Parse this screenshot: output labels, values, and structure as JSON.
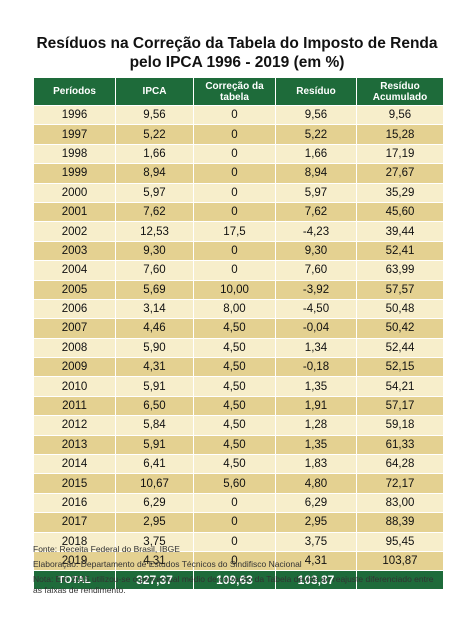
{
  "title_line1": "Resíduos na Correção da Tabela do Imposto de Renda",
  "title_line2": "pelo IPCA 1996 - 2019 (em %)",
  "chart_data": {
    "type": "table",
    "columns": [
      "Períodos",
      "IPCA",
      "Correção da tabela",
      "Resíduo",
      "Resíduo Acumulado"
    ],
    "rows": [
      [
        "1996",
        "9,56",
        "0",
        "9,56",
        "9,56"
      ],
      [
        "1997",
        "5,22",
        "0",
        "5,22",
        "15,28"
      ],
      [
        "1998",
        "1,66",
        "0",
        "1,66",
        "17,19"
      ],
      [
        "1999",
        "8,94",
        "0",
        "8,94",
        "27,67"
      ],
      [
        "2000",
        "5,97",
        "0",
        "5,97",
        "35,29"
      ],
      [
        "2001",
        "7,62",
        "0",
        "7,62",
        "45,60"
      ],
      [
        "2002",
        "12,53",
        "17,5",
        "-4,23",
        "39,44"
      ],
      [
        "2003",
        "9,30",
        "0",
        "9,30",
        "52,41"
      ],
      [
        "2004",
        "7,60",
        "0",
        "7,60",
        "63,99"
      ],
      [
        "2005",
        "5,69",
        "10,00",
        "-3,92",
        "57,57"
      ],
      [
        "2006",
        "3,14",
        "8,00",
        "-4,50",
        "50,48"
      ],
      [
        "2007",
        "4,46",
        "4,50",
        "-0,04",
        "50,42"
      ],
      [
        "2008",
        "5,90",
        "4,50",
        "1,34",
        "52,44"
      ],
      [
        "2009",
        "4,31",
        "4,50",
        "-0,18",
        "52,15"
      ],
      [
        "2010",
        "5,91",
        "4,50",
        "1,35",
        "54,21"
      ],
      [
        "2011",
        "6,50",
        "4,50",
        "1,91",
        "57,17"
      ],
      [
        "2012",
        "5,84",
        "4,50",
        "1,28",
        "59,18"
      ],
      [
        "2013",
        "5,91",
        "4,50",
        "1,35",
        "61,33"
      ],
      [
        "2014",
        "6,41",
        "4,50",
        "1,83",
        "64,28"
      ],
      [
        "2015",
        "10,67",
        "5,60",
        "4,80",
        "72,17"
      ],
      [
        "2016",
        "6,29",
        "0",
        "6,29",
        "83,00"
      ],
      [
        "2017",
        "2,95",
        "0",
        "2,95",
        "88,39"
      ],
      [
        "2018",
        "3,75",
        "0",
        "3,75",
        "95,45"
      ],
      [
        "2019",
        "4,31",
        "0",
        "4,31",
        "103,87"
      ]
    ],
    "total": [
      "TOTAL",
      "327,37",
      "109,63",
      "103,87",
      ""
    ]
  },
  "colors": {
    "header_green": "#1e6b3a",
    "row_light": "#f7eecb",
    "row_dark": "#e4d191"
  },
  "notes": {
    "source": "Fonte: Receita Federal do Brasil, IBGE",
    "elaboration": "Elaboração: Departamento de Estudos Técnicos do Sindifisco Nacional",
    "note": "Nota: Em 2015 utilizou-se o percentual médio de correção da Tabela devido ao reajuste diferenciado entre as faixas de rendimento."
  }
}
